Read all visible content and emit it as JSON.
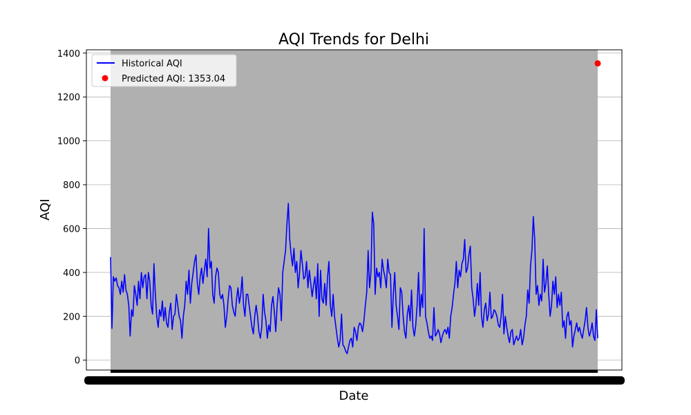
{
  "chart_data": {
    "type": "line",
    "title": "AQI Trends for Delhi",
    "xlabel": "Date",
    "ylabel": "AQI",
    "ylim": [
      -45,
      1415
    ],
    "yticks": [
      0,
      200,
      400,
      600,
      800,
      1000,
      1200,
      1400
    ],
    "grid": true,
    "legend_position": "top-left",
    "colors": {
      "historical": "#0000ff",
      "predicted": "#ff0000",
      "band": "#b0b0b0",
      "grid": "#b0b0b0"
    },
    "series": [
      {
        "name": "Historical AQI",
        "values": [
          470,
          145,
          380,
          360,
          375,
          340,
          330,
          300,
          360,
          310,
          390,
          320,
          300,
          250,
          110,
          230,
          200,
          340,
          300,
          250,
          360,
          280,
          400,
          330,
          380,
          390,
          280,
          400,
          360,
          250,
          210,
          440,
          300,
          200,
          150,
          230,
          200,
          270,
          180,
          240,
          170,
          150,
          220,
          260,
          140,
          200,
          210,
          300,
          250,
          200,
          180,
          100,
          200,
          250,
          360,
          300,
          410,
          260,
          350,
          400,
          450,
          480,
          350,
          300,
          380,
          420,
          350,
          410,
          460,
          380,
          600,
          420,
          450,
          300,
          260,
          380,
          420,
          400,
          300,
          280,
          300,
          250,
          150,
          200,
          280,
          340,
          330,
          250,
          220,
          200,
          280,
          330,
          260,
          300,
          380,
          250,
          200,
          300,
          300,
          250,
          200,
          150,
          120,
          200,
          250,
          200,
          130,
          100,
          150,
          300,
          220,
          180,
          100,
          160,
          130,
          250,
          290,
          220,
          130,
          250,
          330,
          300,
          180,
          400,
          450,
          500,
          620,
          715,
          550,
          480,
          430,
          510,
          400,
          450,
          330,
          400,
          500,
          440,
          370,
          380,
          450,
          330,
          410,
          350,
          290,
          340,
          380,
          280,
          440,
          200,
          410,
          280,
          260,
          350,
          250,
          380,
          450,
          250,
          200,
          300,
          200,
          150,
          100,
          60,
          90,
          210,
          70,
          60,
          40,
          30,
          60,
          90,
          100,
          60,
          150,
          130,
          90,
          150,
          170,
          160,
          130,
          180,
          250,
          310,
          500,
          330,
          400,
          675,
          620,
          300,
          420,
          380,
          400,
          330,
          460,
          410,
          380,
          330,
          460,
          400,
          390,
          150,
          300,
          400,
          250,
          200,
          140,
          330,
          310,
          200,
          130,
          100,
          210,
          250,
          180,
          320,
          150,
          110,
          160,
          250,
          400,
          200,
          300,
          240,
          600,
          200,
          170,
          130,
          100,
          110,
          90,
          240,
          110,
          120,
          140,
          120,
          80,
          110,
          130,
          140,
          120,
          150,
          100,
          200,
          240,
          300,
          350,
          450,
          330,
          410,
          380,
          440,
          460,
          550,
          400,
          420,
          480,
          520,
          330,
          280,
          200,
          250,
          350,
          250,
          400,
          200,
          150,
          230,
          260,
          180,
          210,
          310,
          190,
          200,
          230,
          220,
          200,
          160,
          150,
          200,
          300,
          120,
          200,
          150,
          110,
          80,
          130,
          140,
          70,
          90,
          110,
          90,
          100,
          140,
          70,
          100,
          160,
          200,
          320,
          260,
          430,
          500,
          655,
          550,
          300,
          340,
          250,
          300,
          270,
          460,
          310,
          350,
          430,
          300,
          200,
          250,
          360,
          300,
          380,
          240,
          300,
          250,
          310,
          150,
          180,
          100,
          200,
          220,
          160,
          180,
          60,
          110,
          140,
          170,
          130,
          150,
          120,
          100,
          140,
          180,
          240,
          150,
          110,
          130,
          170,
          110,
          90,
          230,
          100
        ]
      },
      {
        "name": "Predicted AQI: 1353.04",
        "values": [
          1353.04
        ]
      }
    ]
  }
}
